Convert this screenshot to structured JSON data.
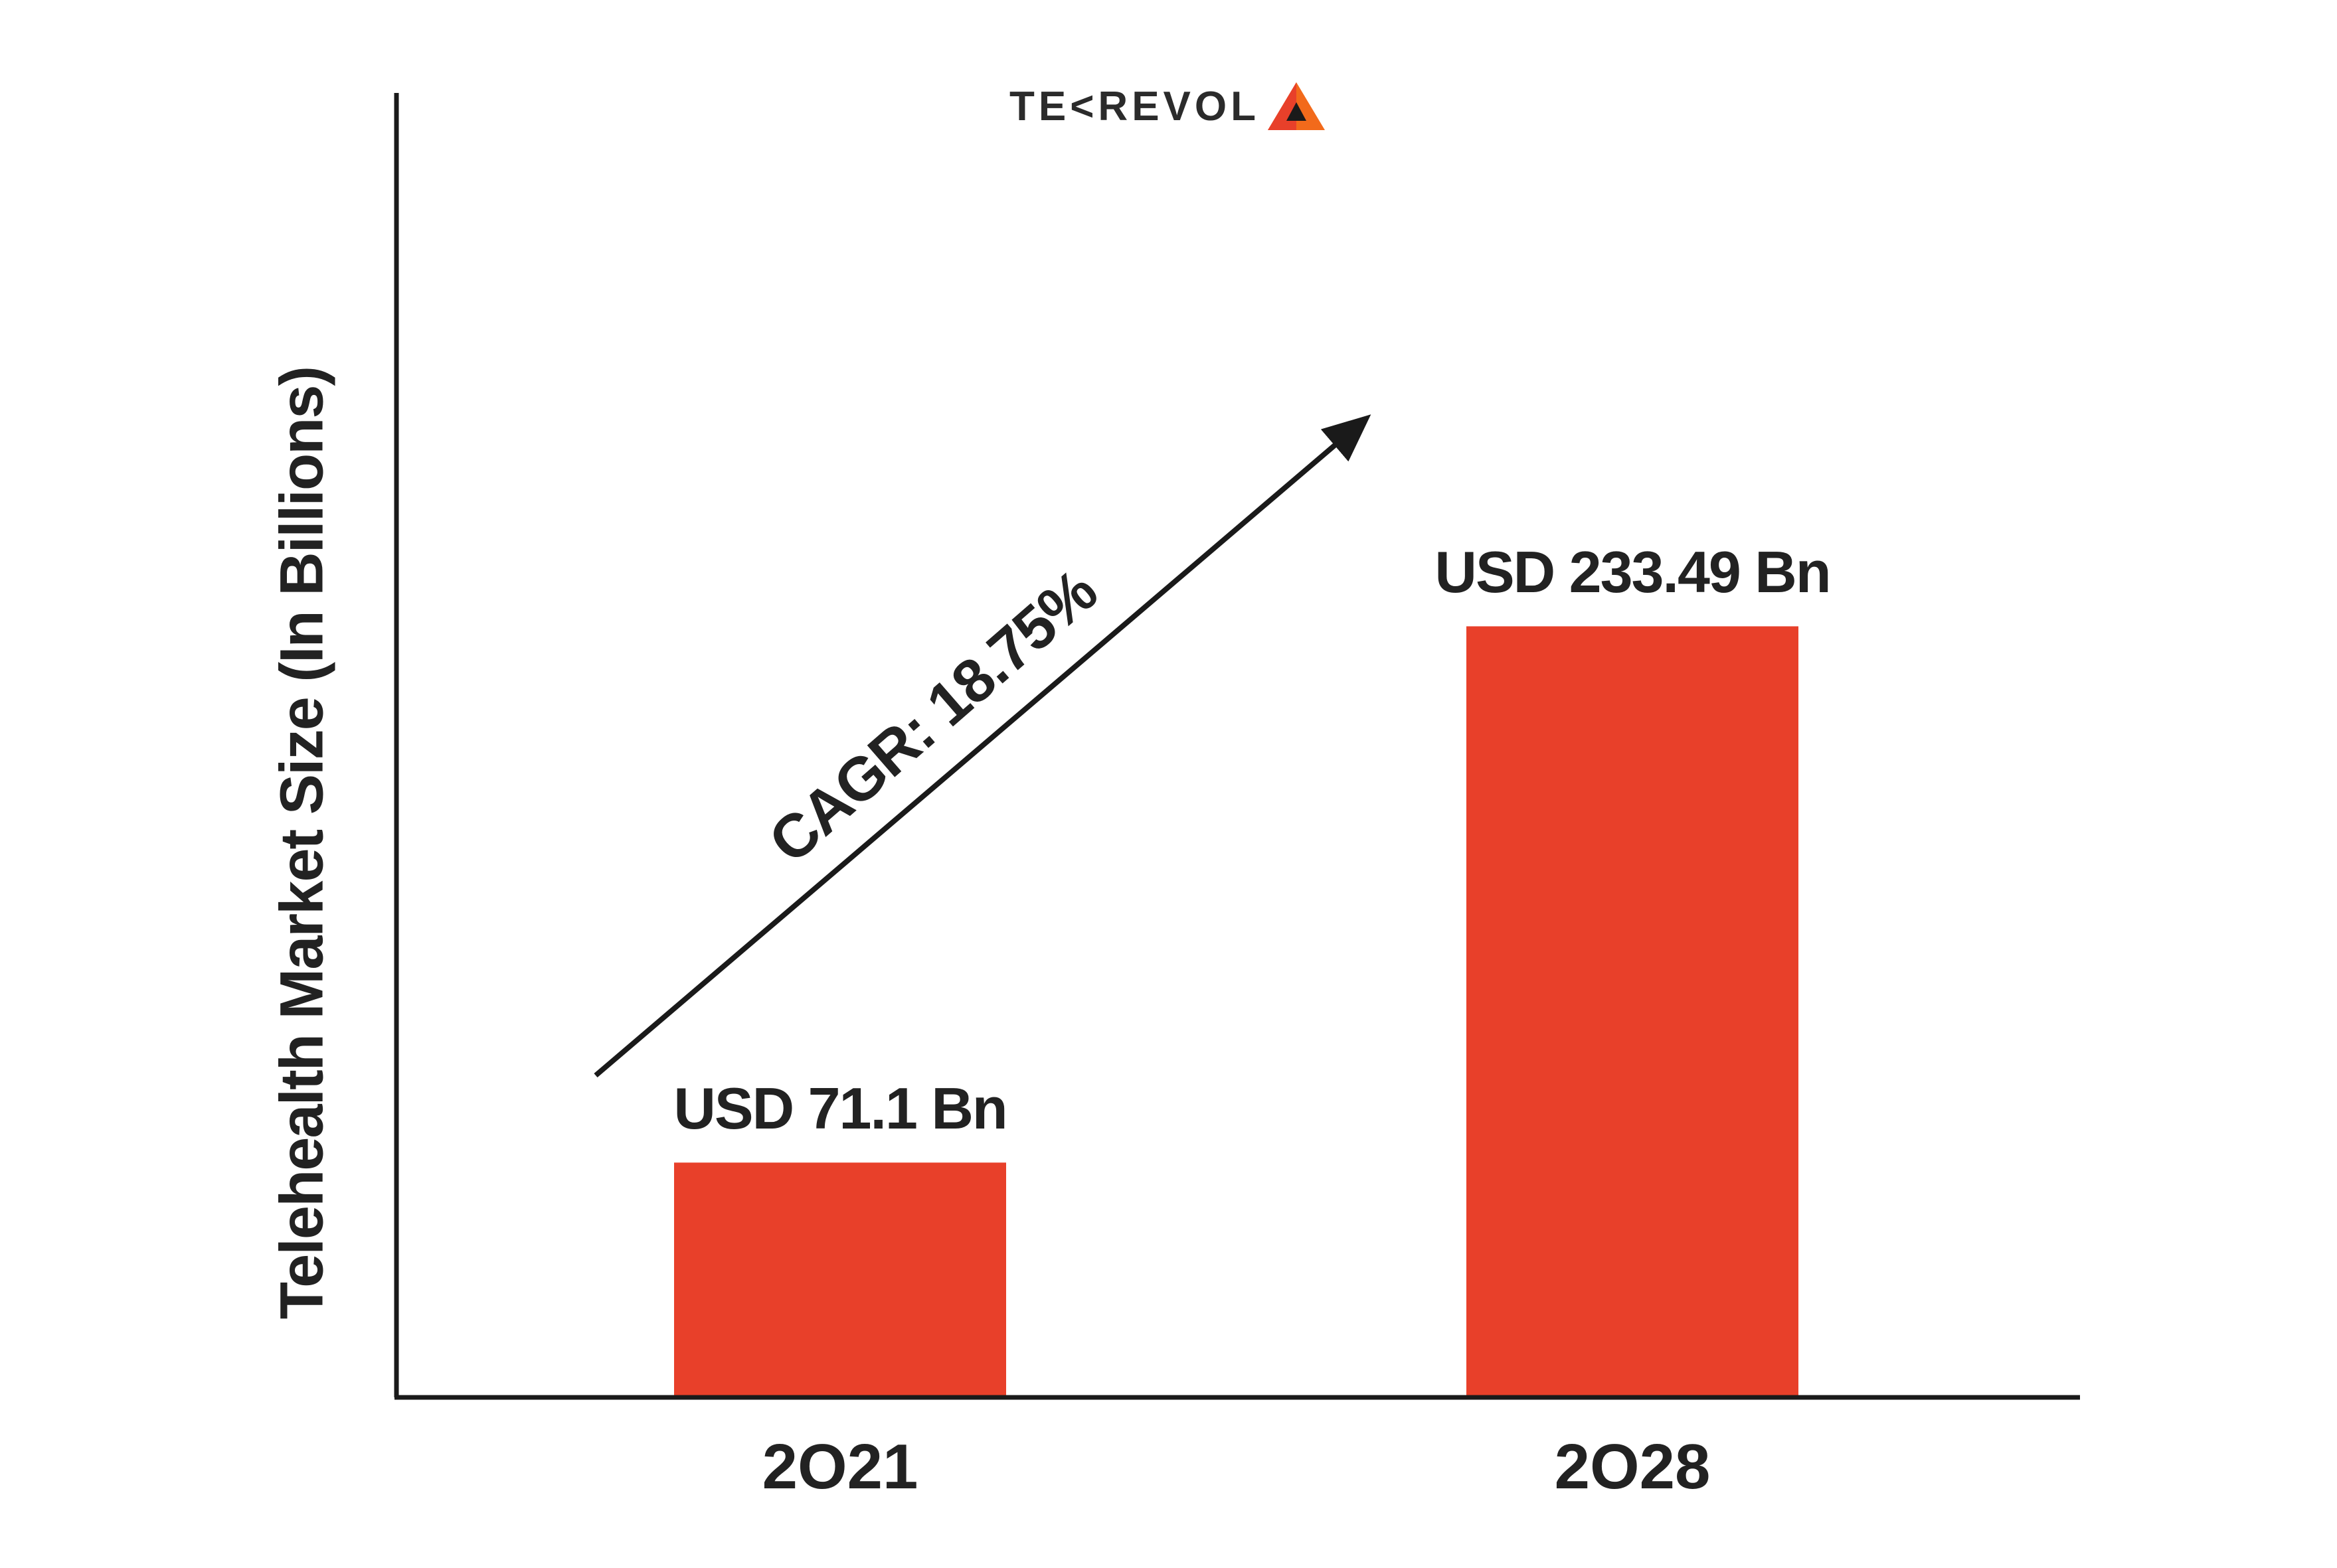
{
  "logo": {
    "text": "TE<REVOL",
    "name": "tekrevol-logo"
  },
  "chart_data": {
    "type": "bar",
    "title": "",
    "xlabel": "",
    "ylabel": "Telehealth Market Size (In Billions)",
    "categories": [
      "2O21",
      "2O28"
    ],
    "values": [
      71.1,
      233.49
    ],
    "data_labels": [
      "USD 71.1 Bn",
      "USD 233.49 Bn"
    ],
    "ylim": [
      0,
      395
    ],
    "grid": false,
    "annotation": "CAGR: 18.75%",
    "colors": {
      "bar": "#E8402A",
      "axis": "#1a1a1a",
      "text": "#222222",
      "logo_orange": "#F26A1B",
      "logo_red": "#E8402A"
    }
  }
}
